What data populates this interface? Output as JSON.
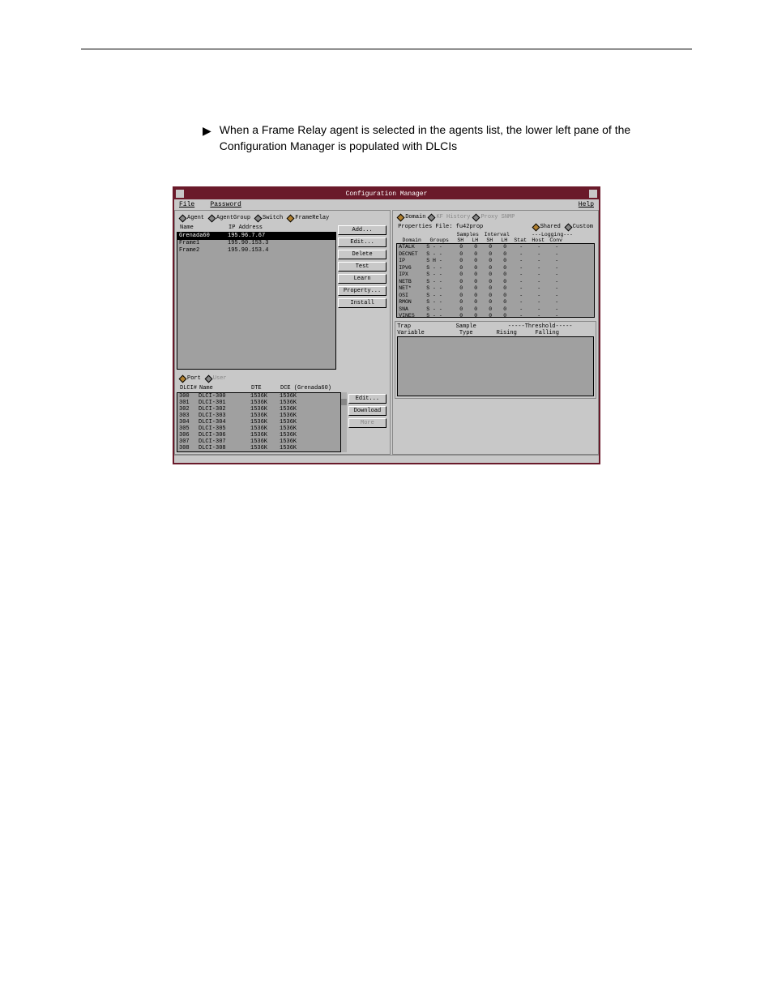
{
  "intro": {
    "arrow": "▶",
    "text": "When a Frame Relay agent is selected in the agents list, the lower left pane of the Configuration Manager is populated with DLCIs"
  },
  "window": {
    "title": "Configuration Manager",
    "menu": {
      "file": "File",
      "password": "Password",
      "help": "Help"
    },
    "left": {
      "radios": {
        "agent": "Agent",
        "agentgroup": "AgentGroup",
        "switch": "Switch",
        "framerelay": "FrameRelay"
      },
      "list_header": {
        "name": "Name",
        "ip": "IP Address"
      },
      "agents": [
        {
          "name": "Grenada60",
          "ip": "195.96.7.67",
          "sel": true
        },
        {
          "name": "Frame1",
          "ip": "195.90.153.3",
          "sel": false
        },
        {
          "name": "Frame2",
          "ip": "195.90.153.4",
          "sel": false
        }
      ],
      "buttons": {
        "add": "Add...",
        "edit": "Edit...",
        "delete": "Delete",
        "test": "Test",
        "learn": "Learn",
        "property": "Property...",
        "install": "Install"
      },
      "port_radio": {
        "port": "Port",
        "user": "User"
      },
      "dlci_header": {
        "dlci": "DLCI#",
        "name": "Name",
        "dte": "DTE",
        "dce": "DCE (Grenada60)"
      },
      "dlcis": [
        {
          "num": "300",
          "name": "DLCI-300",
          "dte": "1536K",
          "dce": "1536K"
        },
        {
          "num": "301",
          "name": "DLCI-301",
          "dte": "1536K",
          "dce": "1536K"
        },
        {
          "num": "302",
          "name": "DLCI-302",
          "dte": "1536K",
          "dce": "1536K"
        },
        {
          "num": "303",
          "name": "DLCI-303",
          "dte": "1536K",
          "dce": "1536K"
        },
        {
          "num": "304",
          "name": "DLCI-304",
          "dte": "1536K",
          "dce": "1536K"
        },
        {
          "num": "305",
          "name": "DLCI-305",
          "dte": "1536K",
          "dce": "1536K"
        },
        {
          "num": "306",
          "name": "DLCI-306",
          "dte": "1536K",
          "dce": "1536K"
        },
        {
          "num": "307",
          "name": "DLCI-307",
          "dte": "1536K",
          "dce": "1536K"
        },
        {
          "num": "308",
          "name": "DLCI-308",
          "dte": "1536K",
          "dce": "1536K"
        }
      ],
      "lower_buttons": {
        "edit": "Edit...",
        "download": "Download",
        "more": "More"
      }
    },
    "right": {
      "radios": {
        "domain": "Domain",
        "kf": "KF History",
        "ps": "Proxy SNMP"
      },
      "props_file_label": "Properties File:",
      "props_file_value": "fu42prop",
      "shared": "Shared",
      "custom": "Custom",
      "samples": "Samples",
      "interval": "Interval",
      "logging": "---Logging---",
      "header": {
        "domain": "Domain",
        "groups": "Groups",
        "sh": "SH",
        "lh": "LH",
        "ish": "SH",
        "ilh": "LH",
        "stat": "Stat",
        "host": "Host",
        "conv": "Conv"
      },
      "domains": [
        {
          "d": "ATALK",
          "g": "S - -"
        },
        {
          "d": "DECNET",
          "g": "S - -"
        },
        {
          "d": "IP",
          "g": "S H -"
        },
        {
          "d": "IPV6",
          "g": "S - -"
        },
        {
          "d": "IPX",
          "g": "S - -"
        },
        {
          "d": "NETB",
          "g": "S - -"
        },
        {
          "d": "NET*",
          "g": "S - -"
        },
        {
          "d": "OSI",
          "g": "S - -"
        },
        {
          "d": "RMON",
          "g": "S - -"
        },
        {
          "d": "SNA",
          "g": "S - -"
        },
        {
          "d": "VINES",
          "g": "S - -"
        }
      ],
      "zero": "0",
      "dash": "-",
      "trap": {
        "trap": "Trap",
        "sample": "Sample",
        "threshold": "-----Threshold-----",
        "variable": "Variable",
        "type": "Type",
        "rising": "Rising",
        "falling": "Falling"
      }
    }
  },
  "colors": {
    "titlebar": "#6a1a2a",
    "panel_bg": "#c8c8c8",
    "list_bg": "#a0a0a0",
    "text": "#000000",
    "greyed": "#888888"
  }
}
